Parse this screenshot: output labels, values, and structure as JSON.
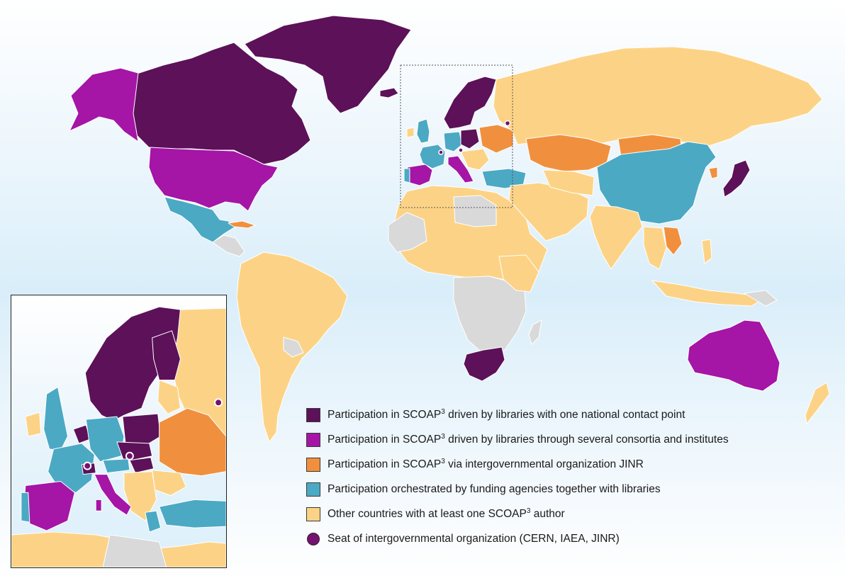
{
  "colors": {
    "libraries_national": "#5c1159",
    "libraries_consortia": "#a515a6",
    "jinr": "#f0903e",
    "funding_agencies": "#4ba9c4",
    "other_author": "#fcd386",
    "no_author": "#d9d9d9",
    "seat": "#74126f"
  },
  "legend": [
    {
      "key": "libraries_national",
      "text_before": "Participation in SCOAP",
      "sup": "3",
      "text_after": " driven by libraries with one national contact point"
    },
    {
      "key": "libraries_consortia",
      "text_before": "Participation in SCOAP",
      "sup": "3",
      "text_after": " driven by libraries through several consortia and institutes"
    },
    {
      "key": "jinr",
      "text_before": "Participation in SCOAP",
      "sup": "3",
      "text_after": " via intergovernmental organization JINR"
    },
    {
      "key": "funding_agencies",
      "text_before": "Participation orchestrated by funding agencies together with libraries",
      "sup": "",
      "text_after": ""
    },
    {
      "key": "other_author",
      "text_before": "Other countries with at least one SCOAP",
      "sup": "3",
      "text_after": " author"
    },
    {
      "key": "seat",
      "text_before": "Seat of intergovernmental organization (CERN, IAEA, JINR)",
      "sup": "",
      "text_after": ""
    }
  ]
}
